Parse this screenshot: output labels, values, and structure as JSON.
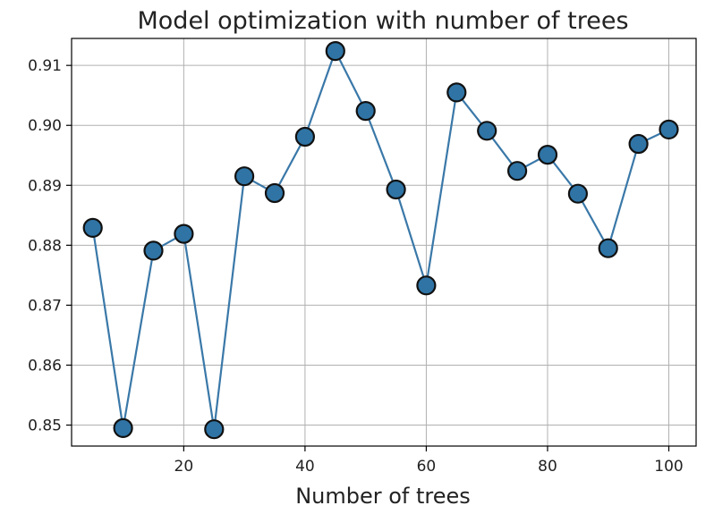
{
  "chart_data": {
    "type": "line",
    "title": "Model optimization with number of trees",
    "xlabel": "Number of trees",
    "ylabel": "",
    "xlim": [
      1.5,
      104.5
    ],
    "ylim": [
      0.8465,
      0.9145
    ],
    "xticks": [
      20,
      40,
      60,
      80,
      100
    ],
    "yticks": [
      0.85,
      0.86,
      0.87,
      0.88,
      0.89,
      0.9,
      0.91
    ],
    "ytick_labels": [
      "0.85",
      "0.86",
      "0.87",
      "0.88",
      "0.89",
      "0.90",
      "0.91"
    ],
    "grid": true,
    "line_color": "#3a78a8",
    "marker_fill": "#2f74a5",
    "marker_edge": "#111111",
    "x": [
      5,
      10,
      15,
      20,
      25,
      30,
      35,
      40,
      45,
      50,
      55,
      60,
      65,
      70,
      75,
      80,
      85,
      90,
      95,
      100
    ],
    "y": [
      0.8829,
      0.8495,
      0.8791,
      0.8819,
      0.8493,
      0.8915,
      0.8887,
      0.8981,
      0.9124,
      0.9024,
      0.8893,
      0.8733,
      0.9055,
      0.8991,
      0.8924,
      0.8951,
      0.8886,
      0.8795,
      0.8969,
      0.8993
    ]
  }
}
